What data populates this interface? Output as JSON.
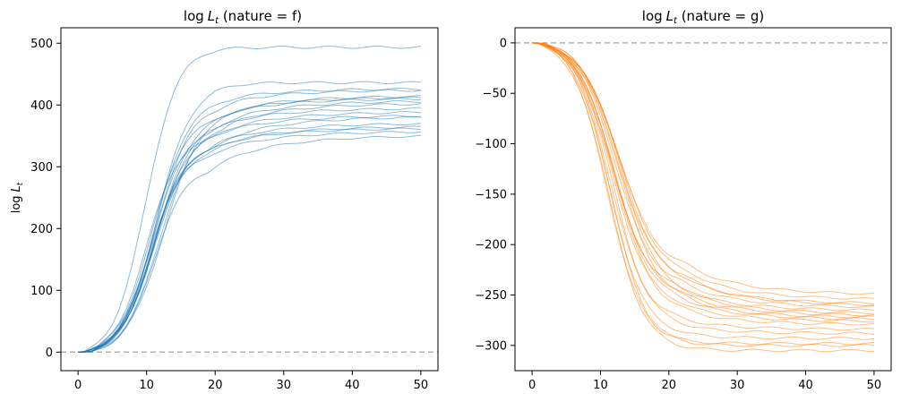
{
  "chart_data": [
    {
      "type": "line",
      "title_prefix": "log",
      "title_var": "L",
      "title_sub": "t",
      "title_suffix": " (nature = f)",
      "ylabel_prefix": "log",
      "ylabel_var": "L",
      "ylabel_sub": "t",
      "xlim": [
        -2.5,
        52.5
      ],
      "ylim": [
        -30,
        525
      ],
      "x_ticks": [
        0,
        10,
        20,
        30,
        40,
        50
      ],
      "y_ticks": [
        0,
        100,
        200,
        300,
        400,
        500
      ],
      "reference_y": 0,
      "reference_color": "#9e9e9e",
      "grid": false,
      "color": "#1f77b4",
      "line_alpha": 0.5,
      "series": [
        {
          "final": 500,
          "plateau_x": 18,
          "scale": 1.0,
          "lag": 0.0
        },
        {
          "final": 442,
          "plateau_x": 20,
          "scale": 1.0,
          "lag": 0.5
        },
        {
          "final": 432,
          "plateau_x": 19,
          "scale": 0.96,
          "lag": 0.8
        },
        {
          "final": 430,
          "plateau_x": 20,
          "scale": 0.95,
          "lag": 0.3
        },
        {
          "final": 420,
          "plateau_x": 21,
          "scale": 0.95,
          "lag": 1.0
        },
        {
          "final": 418,
          "plateau_x": 20,
          "scale": 0.94,
          "lag": 0.6
        },
        {
          "final": 416,
          "plateau_x": 19,
          "scale": 0.93,
          "lag": 0.2
        },
        {
          "final": 408,
          "plateau_x": 20,
          "scale": 0.92,
          "lag": 0.9
        },
        {
          "final": 400,
          "plateau_x": 19,
          "scale": 0.93,
          "lag": 0.4
        },
        {
          "final": 394,
          "plateau_x": 19,
          "scale": 0.92,
          "lag": 0.7
        },
        {
          "final": 388,
          "plateau_x": 18,
          "scale": 0.91,
          "lag": 0.1
        },
        {
          "final": 375,
          "plateau_x": 19,
          "scale": 0.92,
          "lag": 0.6
        },
        {
          "final": 370,
          "plateau_x": 19,
          "scale": 0.91,
          "lag": 0.3
        },
        {
          "final": 367,
          "plateau_x": 18,
          "scale": 0.92,
          "lag": 0.8
        },
        {
          "final": 362,
          "plateau_x": 18,
          "scale": 0.9,
          "lag": 0.5
        },
        {
          "final": 355,
          "plateau_x": 18,
          "scale": 0.86,
          "lag": 1.2
        },
        {
          "final": 386,
          "plateau_x": 18,
          "scale": 0.88,
          "lag": 0.9
        },
        {
          "final": 412,
          "plateau_x": 20,
          "scale": 0.92,
          "lag": 0.4
        }
      ]
    },
    {
      "type": "line",
      "title_prefix": "log",
      "title_var": "L",
      "title_sub": "t",
      "title_suffix": " (nature = g)",
      "xlim": [
        -2.5,
        52.5
      ],
      "ylim": [
        -325,
        15
      ],
      "x_ticks": [
        0,
        10,
        20,
        30,
        40,
        50
      ],
      "y_ticks": [
        0,
        -50,
        -100,
        -150,
        -200,
        -250,
        -300
      ],
      "reference_y": 0,
      "reference_color": "#9e9e9e",
      "grid": false,
      "color": "#ff7f0e",
      "line_alpha": 0.5,
      "series": [
        {
          "final": -253,
          "plateau_x": 22,
          "scale": 0.9,
          "lag": 0.5
        },
        {
          "final": -258,
          "plateau_x": 23,
          "scale": 0.92,
          "lag": 0.2
        },
        {
          "final": -262,
          "plateau_x": 22,
          "scale": 0.93,
          "lag": 0.8
        },
        {
          "final": -264,
          "plateau_x": 22,
          "scale": 0.91,
          "lag": 0.4
        },
        {
          "final": -266,
          "plateau_x": 21,
          "scale": 0.92,
          "lag": 0.6
        },
        {
          "final": -269,
          "plateau_x": 21,
          "scale": 0.93,
          "lag": 0.1
        },
        {
          "final": -272,
          "plateau_x": 22,
          "scale": 0.94,
          "lag": 0.9
        },
        {
          "final": -274,
          "plateau_x": 21,
          "scale": 0.93,
          "lag": 0.3
        },
        {
          "final": -276,
          "plateau_x": 22,
          "scale": 0.95,
          "lag": 0.7
        },
        {
          "final": -278,
          "plateau_x": 21,
          "scale": 0.94,
          "lag": 0.5
        },
        {
          "final": -280,
          "plateau_x": 21,
          "scale": 0.95,
          "lag": 0.2
        },
        {
          "final": -283,
          "plateau_x": 21,
          "scale": 0.96,
          "lag": 0.6
        },
        {
          "final": -288,
          "plateau_x": 20,
          "scale": 0.97,
          "lag": 0.4
        },
        {
          "final": -292,
          "plateau_x": 20,
          "scale": 0.98,
          "lag": 0.8
        },
        {
          "final": -297,
          "plateau_x": 20,
          "scale": 0.99,
          "lag": 0.3
        },
        {
          "final": -302,
          "plateau_x": 20,
          "scale": 1.0,
          "lag": 0.0
        },
        {
          "final": -304,
          "plateau_x": 20,
          "scale": 1.0,
          "lag": 0.5
        },
        {
          "final": -309,
          "plateau_x": 20,
          "scale": 1.0,
          "lag": 0.2
        }
      ]
    }
  ]
}
